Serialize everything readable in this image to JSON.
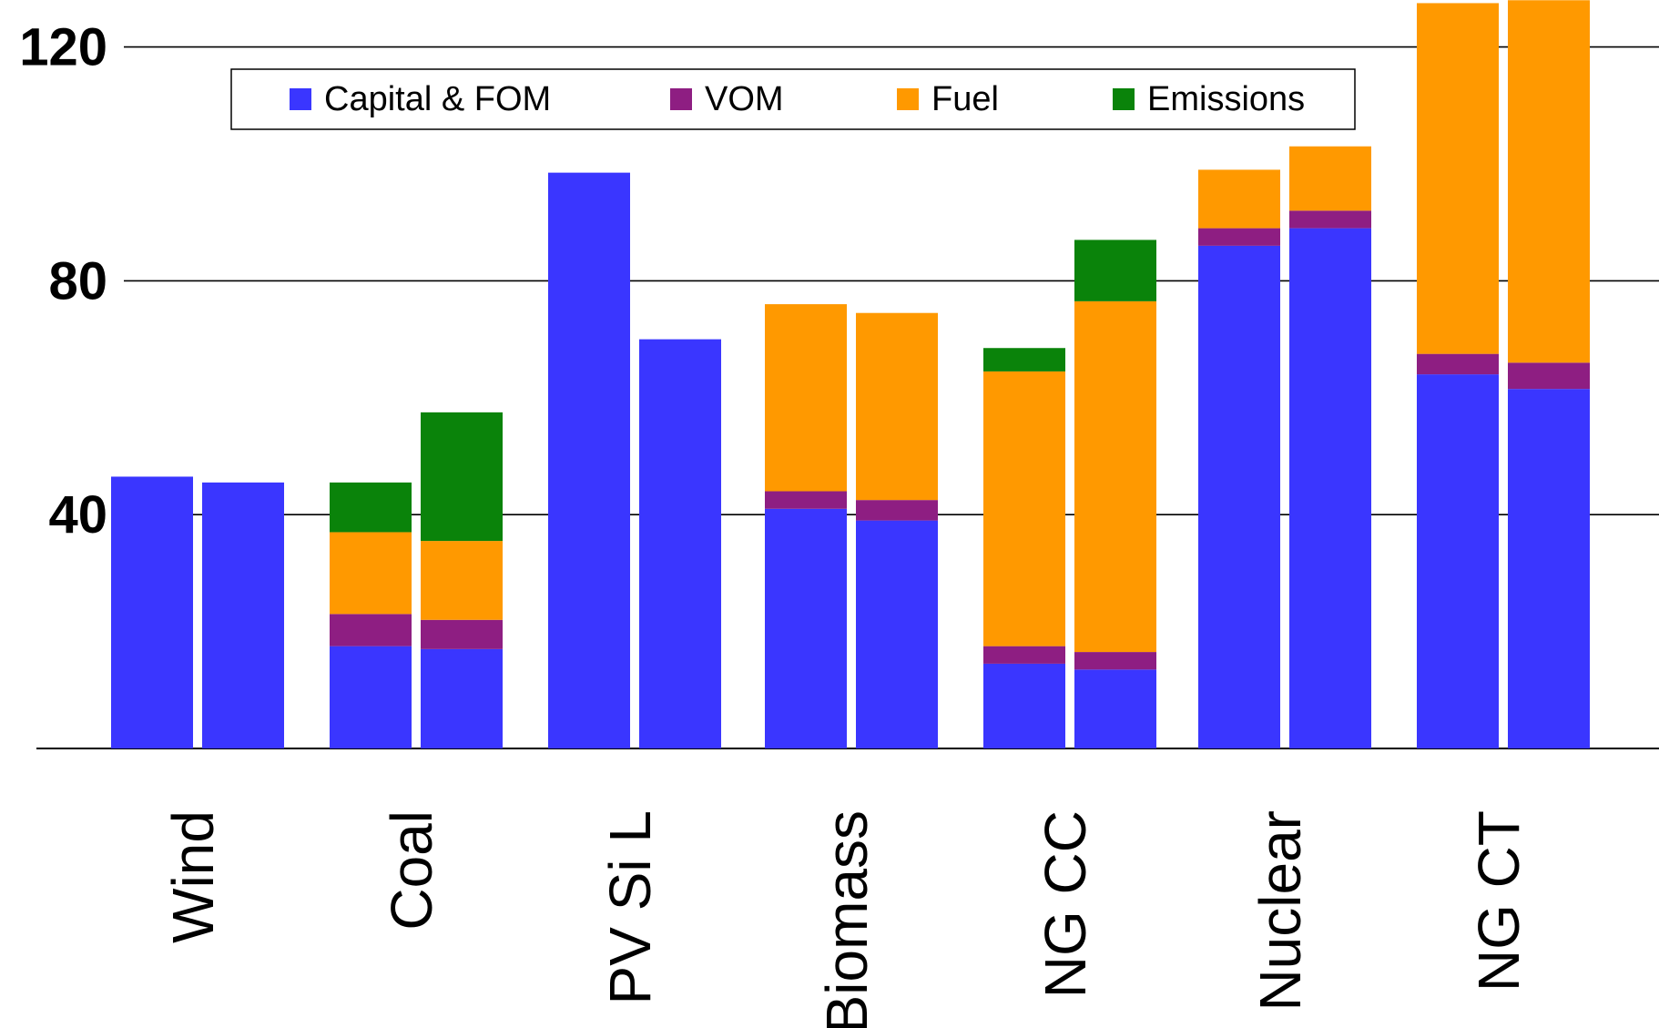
{
  "chart_data": {
    "type": "bar",
    "stacked": true,
    "bars_per_category": 2,
    "categories": [
      "Wind",
      "Coal",
      "PV Si L",
      "Biomass",
      "NG CC",
      "Nuclear",
      "NG CT"
    ],
    "ylim": [
      0,
      125
    ],
    "yticks": [
      40,
      80,
      120
    ],
    "ytick_labels": [
      "40",
      "80",
      "120"
    ],
    "grid": "horizontal",
    "legend_position": "top",
    "series": [
      {
        "name": "Capital & FOM",
        "color": "#3a36ff",
        "values": [
          [
            46.5,
            45.5
          ],
          [
            17.5,
            17
          ],
          [
            98.5,
            70
          ],
          [
            41,
            39
          ],
          [
            14.5,
            13.5
          ],
          [
            86,
            89
          ],
          [
            64,
            61.5
          ]
        ]
      },
      {
        "name": "VOM",
        "color": "#8e1e82",
        "values": [
          [
            0,
            0
          ],
          [
            5.5,
            5
          ],
          [
            0,
            0
          ],
          [
            3,
            3.5
          ],
          [
            3,
            3
          ],
          [
            3,
            3
          ],
          [
            3.5,
            4.5
          ]
        ]
      },
      {
        "name": "Fuel",
        "color": "#ff9900",
        "values": [
          [
            0,
            0
          ],
          [
            14,
            13.5
          ],
          [
            0,
            0
          ],
          [
            32,
            32
          ],
          [
            47,
            60
          ],
          [
            10,
            11
          ],
          [
            60,
            62
          ]
        ]
      },
      {
        "name": "Emissions",
        "color": "#0a830a",
        "values": [
          [
            0,
            0
          ],
          [
            8.5,
            22
          ],
          [
            0,
            0
          ],
          [
            0,
            0
          ],
          [
            4,
            10.5
          ],
          [
            0,
            0
          ],
          [
            0,
            0
          ]
        ]
      }
    ]
  }
}
